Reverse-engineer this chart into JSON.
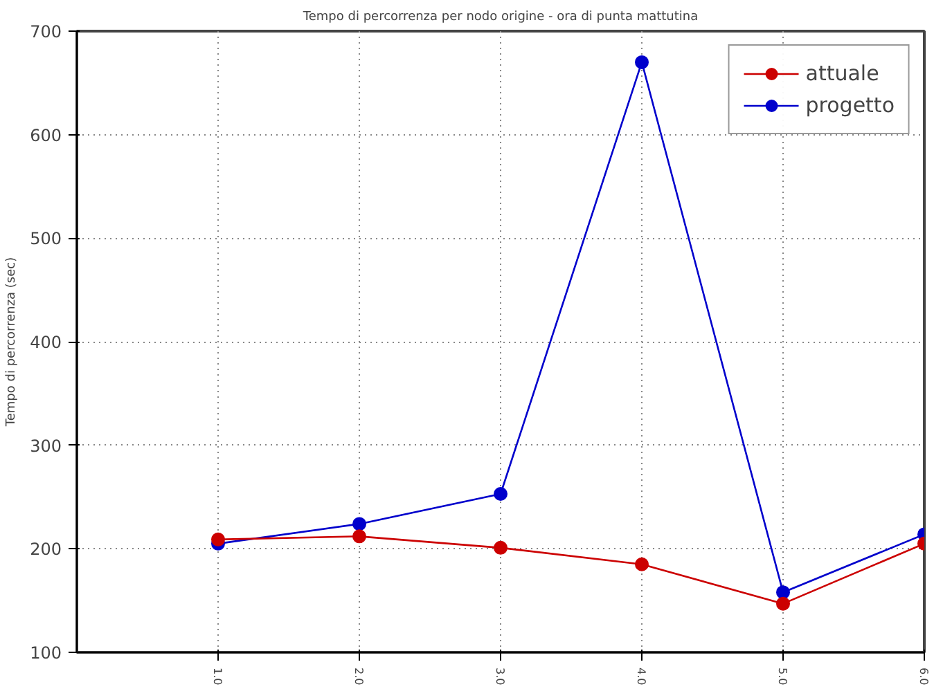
{
  "chart_data": {
    "type": "line",
    "title": "Tempo di percorrenza per nodo origine - ora di punta mattutina",
    "ylabel": "Tempo di percorrenza (sec)",
    "x": [
      1,
      2,
      3,
      4,
      5,
      6
    ],
    "series": [
      {
        "name": "attuale",
        "color": "#cc0000",
        "values": [
          209,
          212,
          201,
          185,
          147,
          205
        ]
      },
      {
        "name": "progetto",
        "color": "#0000cc",
        "values": [
          205,
          224,
          253,
          670,
          158,
          214
        ]
      }
    ],
    "xlim": [
      0,
      6
    ],
    "xticks": [
      {
        "value": 1,
        "label": "1.0"
      },
      {
        "value": 2,
        "label": "2.0"
      },
      {
        "value": 3,
        "label": "3.0"
      },
      {
        "value": 4,
        "label": "4.0"
      },
      {
        "value": 5,
        "label": "5.0"
      },
      {
        "value": 6,
        "label": "6.0"
      }
    ],
    "ylim": [
      100,
      700
    ],
    "yticks": [
      100,
      200,
      300,
      400,
      500,
      600,
      700
    ],
    "grid": true,
    "legend": "top right",
    "marker": "circle",
    "line_style": "solid"
  }
}
